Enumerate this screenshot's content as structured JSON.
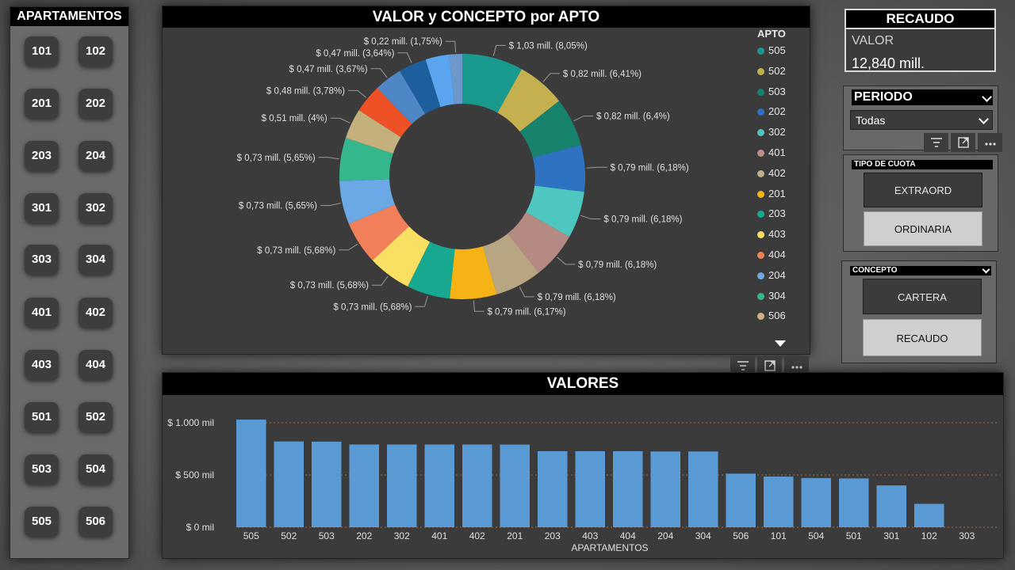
{
  "apartments_panel": {
    "title": "APARTAMENTOS",
    "buttons": [
      "101",
      "102",
      "201",
      "202",
      "203",
      "204",
      "301",
      "302",
      "303",
      "304",
      "401",
      "402",
      "403",
      "404",
      "501",
      "502",
      "503",
      "504",
      "505",
      "506"
    ]
  },
  "donut": {
    "title": "VALOR y CONCEPTO por APTO",
    "legend_title": "APTO",
    "legend": [
      {
        "label": "505",
        "color": "#1a9a8e"
      },
      {
        "label": "502",
        "color": "#c4b04e"
      },
      {
        "label": "503",
        "color": "#17836d"
      },
      {
        "label": "202",
        "color": "#2e72c2"
      },
      {
        "label": "302",
        "color": "#4ec7c0"
      },
      {
        "label": "401",
        "color": "#c28f87"
      },
      {
        "label": "402",
        "color": "#bfae8a"
      },
      {
        "label": "201",
        "color": "#f5b316"
      },
      {
        "label": "203",
        "color": "#18a88f"
      },
      {
        "label": "403",
        "color": "#f9df62"
      },
      {
        "label": "404",
        "color": "#f17f5a"
      },
      {
        "label": "204",
        "color": "#6aa8e6"
      },
      {
        "label": "304",
        "color": "#35b68c"
      },
      {
        "label": "506",
        "color": "#c9b482"
      }
    ]
  },
  "chart_data": [
    {
      "type": "pie",
      "title": "VALOR y CONCEPTO por APTO",
      "legend_title": "APTO",
      "legend_position": "right",
      "slices": [
        {
          "apto": "505",
          "value": 1.03,
          "label": "$ 1,03 mill. (8,05%)",
          "color": "#1a9a8e"
        },
        {
          "apto": "502",
          "value": 0.82,
          "label": "$ 0,82 mill. (6,41%)",
          "color": "#c4b04e"
        },
        {
          "apto": "503",
          "value": 0.82,
          "label": "$ 0,82 mill. (6,4%)",
          "color": "#17836d"
        },
        {
          "apto": "202",
          "value": 0.79,
          "label": "$ 0,79 mill. (6,18%)",
          "color": "#2e72c2"
        },
        {
          "apto": "302",
          "value": 0.79,
          "label": "$ 0,79 mill. (6,18%)",
          "color": "#4ec7c0"
        },
        {
          "apto": "401",
          "value": 0.79,
          "label": "$ 0,79 mill. (6,18%)",
          "color": "#b58a82"
        },
        {
          "apto": "402",
          "value": 0.79,
          "label": "$ 0,79 mill. (6,18%)",
          "color": "#b7a681"
        },
        {
          "apto": "201",
          "value": 0.79,
          "label": "$ 0,79 mill. (6,17%)",
          "color": "#f5b316"
        },
        {
          "apto": "203",
          "value": 0.73,
          "label": "$ 0,73 mill. (5,68%)",
          "color": "#18a88f"
        },
        {
          "apto": "403",
          "value": 0.73,
          "label": "$ 0,73 mill. (5,68%)",
          "color": "#f9df62"
        },
        {
          "apto": "404",
          "value": 0.73,
          "label": "$ 0,73 mill. (5,68%)",
          "color": "#f17f5a"
        },
        {
          "apto": "204",
          "value": 0.73,
          "label": "$ 0,73 mill. (5,65%)",
          "color": "#6aa8e6"
        },
        {
          "apto": "304",
          "value": 0.73,
          "label": "$ 0,73 mill. (5,65%)",
          "color": "#35b68c"
        },
        {
          "apto": "506",
          "value": 0.51,
          "label": "$ 0,51 mill. (4%)",
          "color": "#c4b07c"
        },
        {
          "apto": "101",
          "value": 0.48,
          "label": "$ 0,48 mill. (3,78%)",
          "color": "#ee5126"
        },
        {
          "apto": "504",
          "value": 0.47,
          "label": "$ 0,47 mill. (3,67%)",
          "color": "#4f86c6"
        },
        {
          "apto": "501",
          "value": 0.47,
          "label": "$ 0,47 mill. (3,64%)",
          "color": "#1d5e9c"
        },
        {
          "apto": "301",
          "value": 0.4,
          "label": "",
          "color": "#5aa4f0"
        },
        {
          "apto": "102",
          "value": 0.22,
          "label": "$ 0,22 mill. (1,75%)",
          "color": "#6c98cc"
        }
      ]
    },
    {
      "type": "bar",
      "title": "VALORES",
      "xlabel": "APARTAMENTOS",
      "ylabel": "",
      "ylim": [
        0,
        1100
      ],
      "yticks": [
        {
          "value": 0,
          "label": "$ 0 mil"
        },
        {
          "value": 500,
          "label": "$ 500 mil"
        },
        {
          "value": 1000,
          "label": "$ 1.000 mil"
        }
      ],
      "categories": [
        "505",
        "502",
        "503",
        "202",
        "302",
        "401",
        "402",
        "201",
        "203",
        "403",
        "404",
        "204",
        "304",
        "506",
        "101",
        "504",
        "501",
        "301",
        "102",
        "303"
      ],
      "values": [
        1030,
        821,
        819,
        792,
        792,
        792,
        792,
        791,
        728,
        728,
        728,
        725,
        725,
        513,
        485,
        471,
        467,
        400,
        224,
        0
      ],
      "color": "#5b9bd5"
    }
  ],
  "card": {
    "title": "RECAUDO",
    "label": "VALOR",
    "value": "12,840 mill."
  },
  "periodo": {
    "title": "PERIODO",
    "selected": "Todas"
  },
  "tipo_cuota": {
    "title": "TIPO DE CUOTA",
    "options": [
      {
        "label": "EXTRAORD",
        "selected": false
      },
      {
        "label": "ORDINARIA",
        "selected": true
      }
    ]
  },
  "concepto": {
    "title": "CONCEPTO",
    "options": [
      {
        "label": "CARTERA",
        "selected": false
      },
      {
        "label": "RECAUDO",
        "selected": true
      }
    ]
  },
  "toolbar_icons": [
    "filter-icon",
    "focus-mode-icon",
    "more-options-icon"
  ]
}
